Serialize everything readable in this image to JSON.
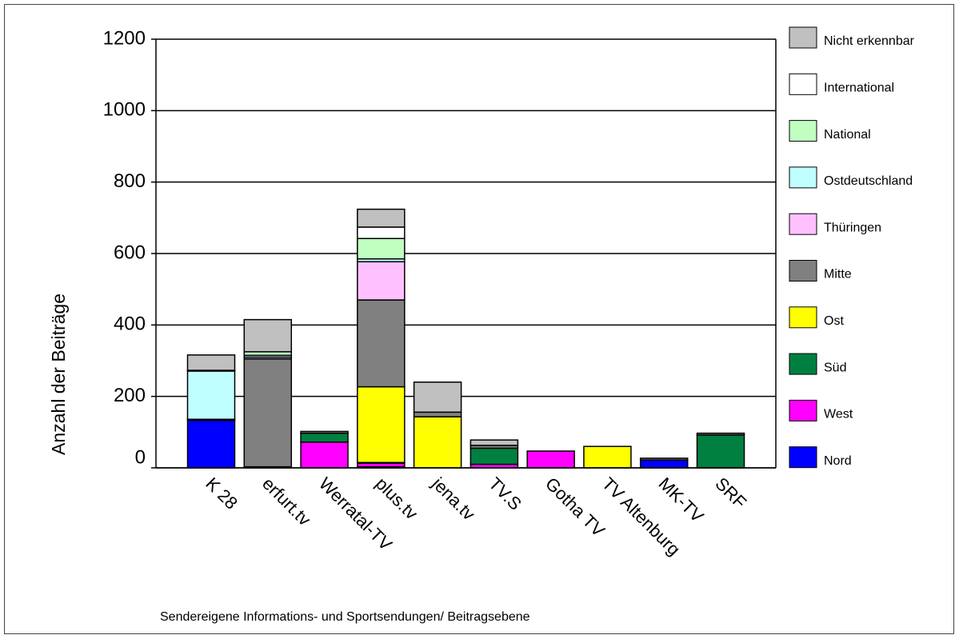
{
  "chart_data": {
    "type": "stacked-bar",
    "y_label": "Anzahl der Beiträge",
    "caption": "Sendereigene Informations- und Sportsendungen/ Beitragsebene",
    "categories": [
      "K 28",
      "erfurt.tv",
      "Werratal-TV",
      "plus.tv",
      "jena.tv",
      "TV.S",
      "Gotha TV",
      "TV Altenburg",
      "MK-TV",
      "SRF"
    ],
    "series": [
      {
        "name": "Nord",
        "color": "#0000ff",
        "values": [
          133,
          3,
          0,
          3,
          0,
          0,
          0,
          0,
          22,
          0
        ]
      },
      {
        "name": "West",
        "color": "#ff00ff",
        "values": [
          0,
          0,
          72,
          10,
          0,
          10,
          47,
          0,
          0,
          0
        ]
      },
      {
        "name": "Süd",
        "color": "#008040",
        "values": [
          0,
          0,
          25,
          2,
          0,
          45,
          0,
          0,
          0,
          92
        ]
      },
      {
        "name": "Ost",
        "color": "#ffff00",
        "values": [
          0,
          0,
          0,
          212,
          143,
          0,
          0,
          60,
          0,
          0
        ]
      },
      {
        "name": "Mitte",
        "color": "#808080",
        "values": [
          3,
          302,
          5,
          243,
          13,
          8,
          0,
          0,
          5,
          5
        ]
      },
      {
        "name": "Thüringen",
        "color": "#ffc0ff",
        "values": [
          0,
          5,
          0,
          107,
          0,
          0,
          0,
          0,
          0,
          0
        ]
      },
      {
        "name": "Ostdeutschland",
        "color": "#c0ffff",
        "values": [
          135,
          5,
          0,
          8,
          0,
          0,
          0,
          0,
          0,
          0
        ]
      },
      {
        "name": "National",
        "color": "#c0ffc0",
        "values": [
          2,
          10,
          0,
          57,
          0,
          0,
          0,
          0,
          0,
          0
        ]
      },
      {
        "name": "International",
        "color": "#ffffff",
        "values": [
          0,
          0,
          0,
          32,
          0,
          0,
          0,
          0,
          0,
          0
        ]
      },
      {
        "name": "Nicht erkennbar",
        "color": "#c0c0c0",
        "values": [
          43,
          90,
          0,
          50,
          84,
          15,
          0,
          0,
          0,
          0
        ]
      }
    ],
    "ylim": [
      0,
      1200
    ],
    "yticks": [
      0,
      200,
      400,
      600,
      800,
      1000,
      1200
    ],
    "grid": true,
    "legend": "right"
  }
}
